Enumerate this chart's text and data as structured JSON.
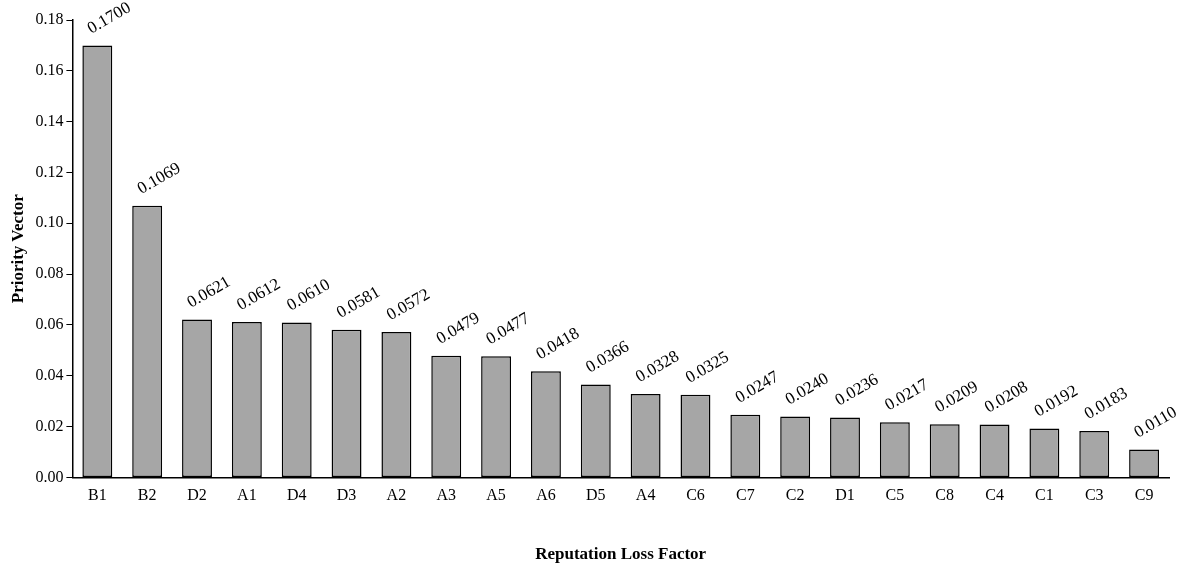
{
  "chart_data": {
    "type": "bar",
    "xlabel": "Reputation Loss Factor",
    "ylabel": "Priority Vector",
    "categories": [
      "B1",
      "B2",
      "D2",
      "A1",
      "D4",
      "D3",
      "A2",
      "A3",
      "A5",
      "A6",
      "D5",
      "A4",
      "C6",
      "C7",
      "C2",
      "D1",
      "C5",
      "C8",
      "C4",
      "C1",
      "C3",
      "C9"
    ],
    "values": [
      0.17,
      0.1069,
      0.0621,
      0.0612,
      0.061,
      0.0581,
      0.0572,
      0.0479,
      0.0477,
      0.0418,
      0.0366,
      0.0328,
      0.0325,
      0.0247,
      0.024,
      0.0236,
      0.0217,
      0.0209,
      0.0208,
      0.0192,
      0.0183,
      0.011
    ],
    "value_labels": [
      "0.1700",
      "0.1069",
      "0.0621",
      "0.0612",
      "0.0610",
      "0.0581",
      "0.0572",
      "0.0479",
      "0.0477",
      "0.0418",
      "0.0366",
      "0.0328",
      "0.0325",
      "0.0247",
      "0.0240",
      "0.0236",
      "0.0217",
      "0.0209",
      "0.0208",
      "0.0192",
      "0.0183",
      "0.0110"
    ],
    "color": "#a6a6a6",
    "ylim": [
      0,
      0.18
    ],
    "yticks": [
      {
        "value": 0,
        "label": "0.00"
      },
      {
        "value": 0.02,
        "label": "0.02"
      },
      {
        "value": 0.04,
        "label": "0.04"
      },
      {
        "value": 0.06,
        "label": "0.06"
      },
      {
        "value": 0.08,
        "label": "0.08"
      },
      {
        "value": 0.1,
        "label": "0.10"
      },
      {
        "value": 0.12,
        "label": "0.12"
      },
      {
        "value": 0.14,
        "label": "0.14"
      },
      {
        "value": 0.16,
        "label": "0.16"
      },
      {
        "value": 0.18,
        "label": "0.18"
      }
    ],
    "grid": false,
    "legend": false
  }
}
